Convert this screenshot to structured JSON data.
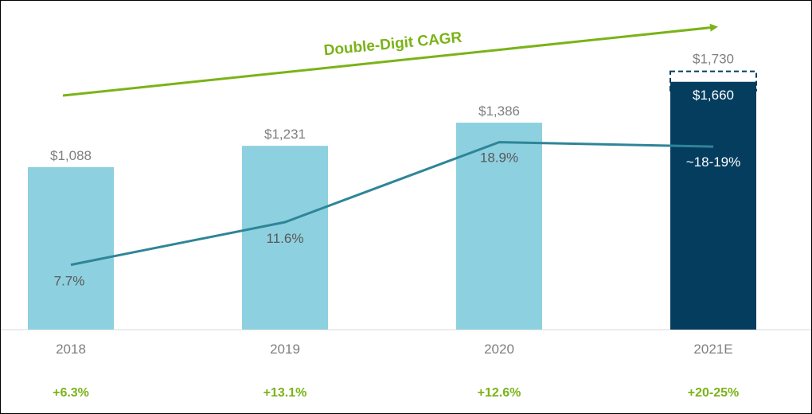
{
  "chart_data": {
    "type": "bar",
    "title": "",
    "xlabel": "",
    "ylabel": "",
    "categories": [
      "2018",
      "2019",
      "2020",
      "2021E"
    ],
    "series": [
      {
        "values": [
          1088,
          1231,
          1386,
          1660
        ],
        "value_labels": [
          "$1,088",
          "$1,231",
          "$1,386",
          "$1,660"
        ],
        "colors": [
          "#8dd0df",
          "#8dd0df",
          "#8dd0df",
          "#053d5f"
        ]
      },
      {
        "type": "line",
        "values": [
          7.7,
          11.6,
          18.9,
          18.5
        ],
        "value_labels": [
          "7.7%",
          "11.6%",
          "18.9%",
          "~18-19%"
        ],
        "color": "#2e8597"
      }
    ],
    "estimate_upper": {
      "category": "2021E",
      "value": 1730,
      "label": "$1,730",
      "style": "dashed outline"
    },
    "growth_labels": [
      "+6.3%",
      "+13.1%",
      "+12.6%",
      "+20-25%"
    ],
    "growth_color": "#7ab317",
    "annotation": {
      "text": "Double-Digit CAGR",
      "style": "arrow trending up-right",
      "color": "#7ab317"
    },
    "ylim": [
      0,
      1800
    ],
    "line_ylim": [
      0,
      25
    ],
    "grid": false,
    "legend": "none"
  }
}
